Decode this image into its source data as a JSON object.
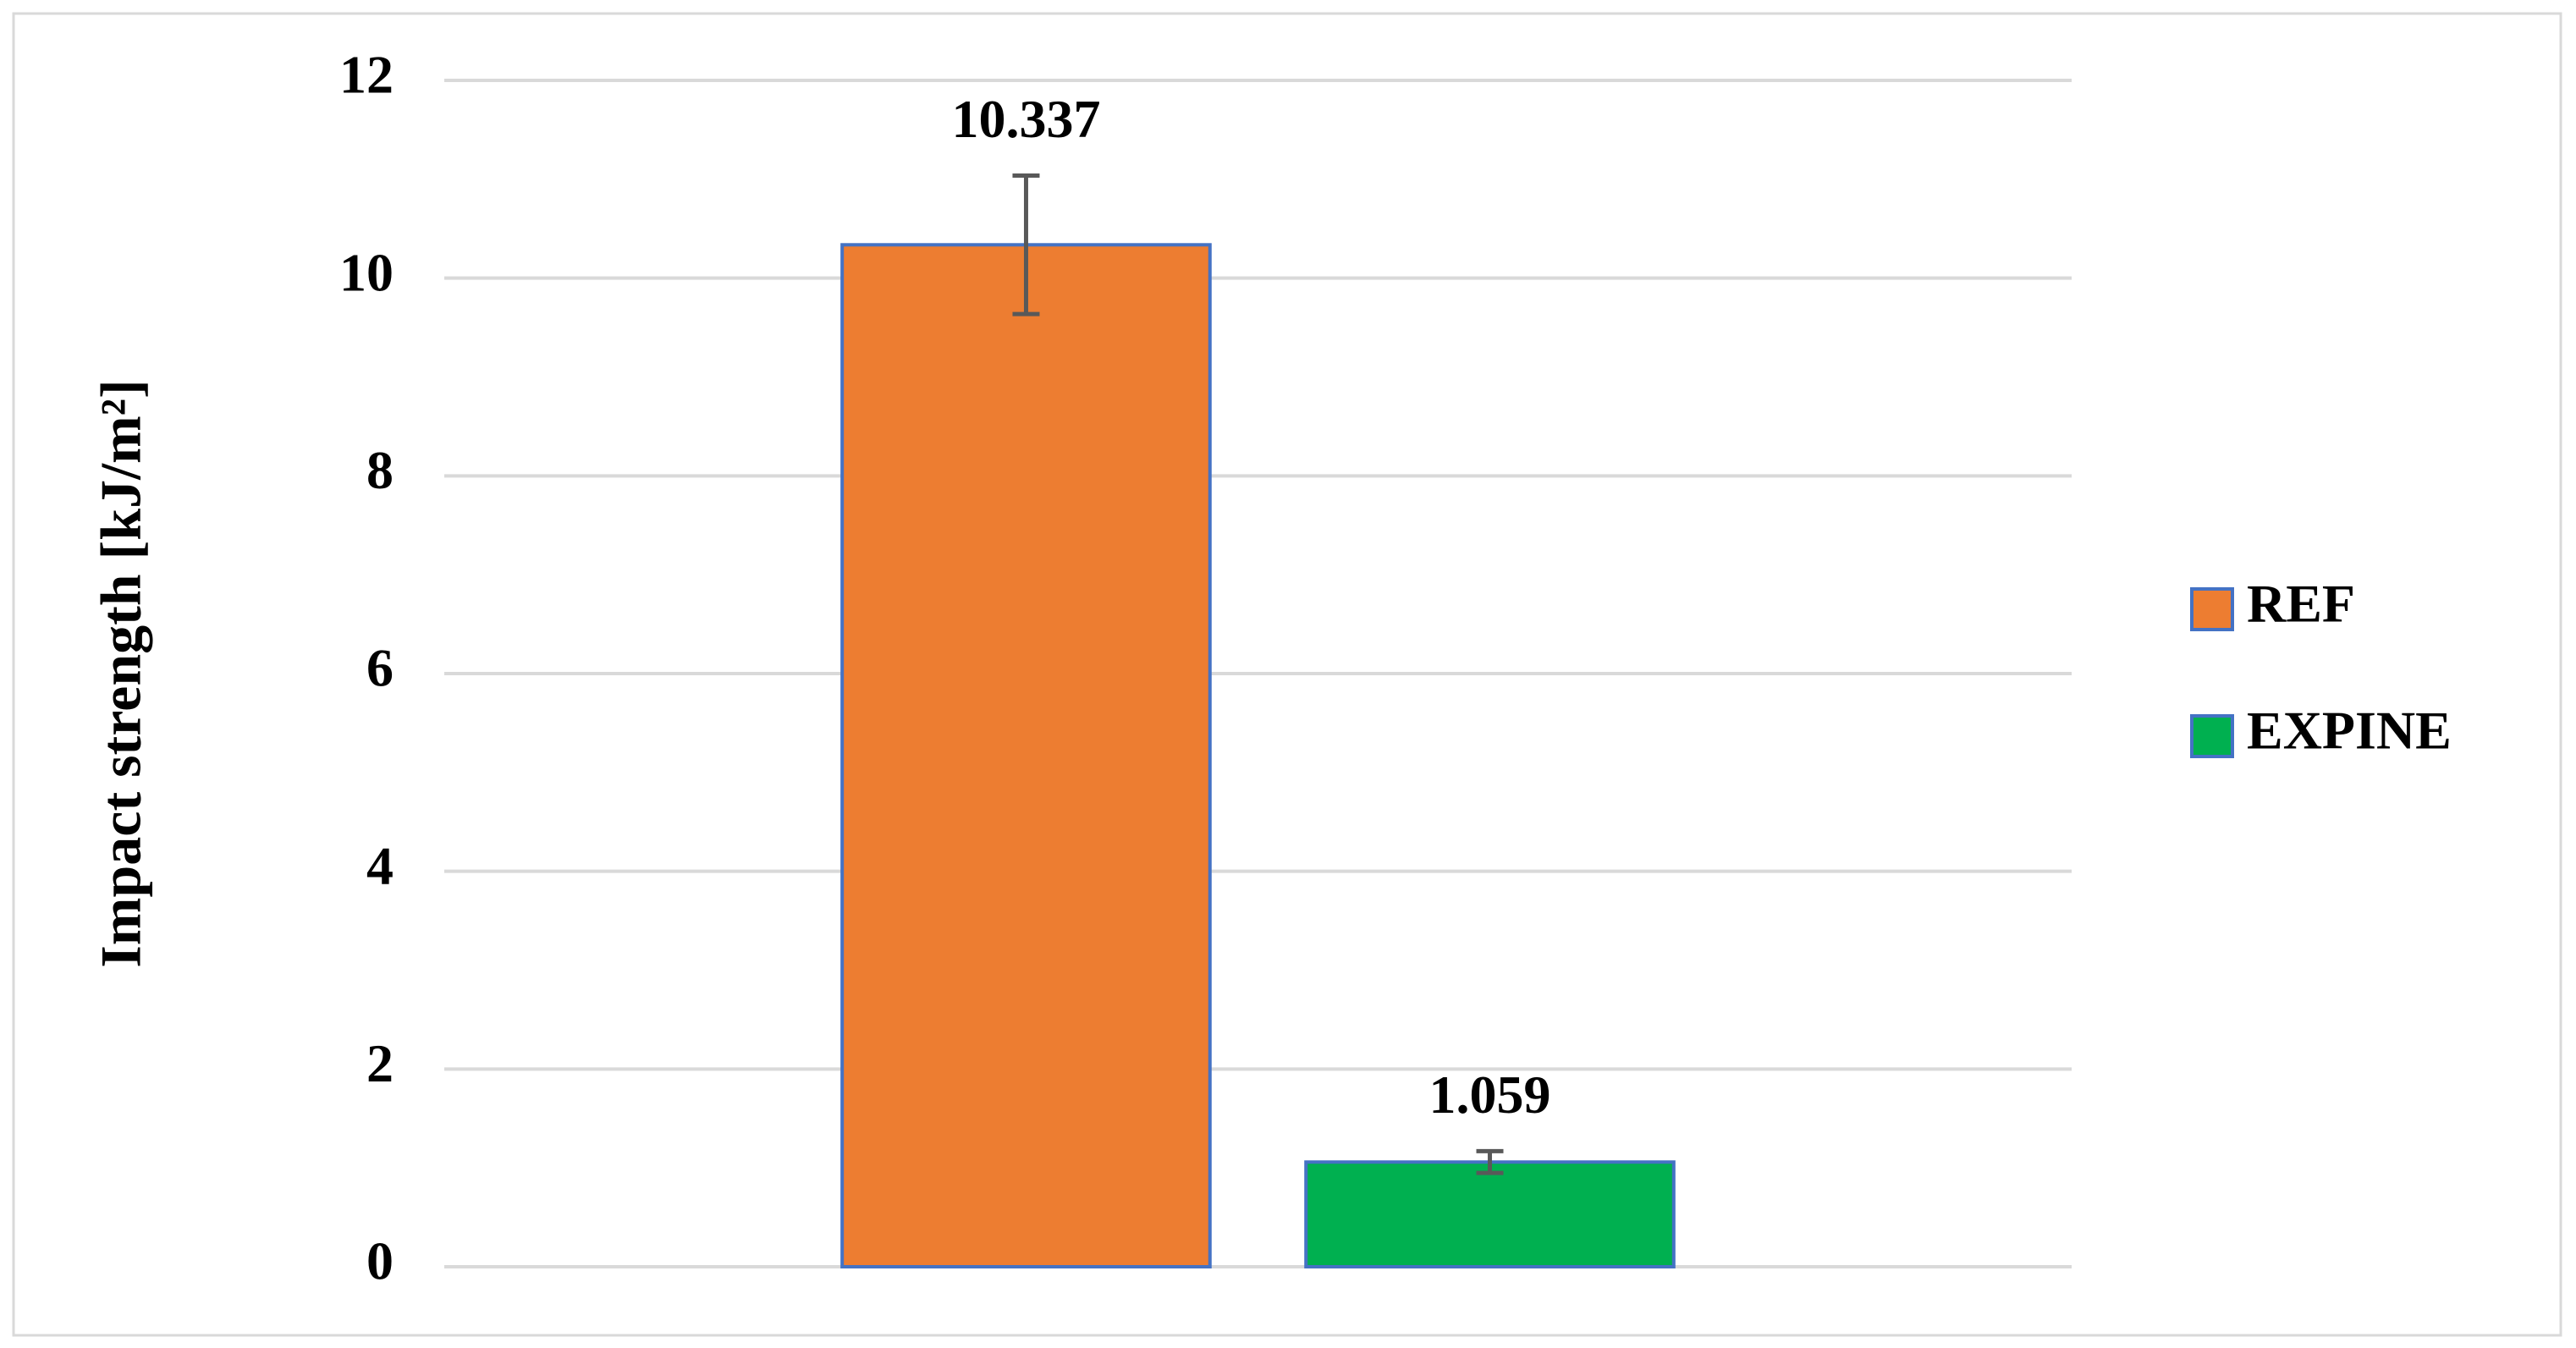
{
  "chart_data": {
    "type": "bar",
    "y_label": "Impact strength [kJ/m²]",
    "series": [
      {
        "name": "REF",
        "color": "#ed7d31",
        "values": [
          10.337
        ],
        "errors": [
          0.7
        ]
      },
      {
        "name": "EXPINE",
        "color": "#00b050",
        "values": [
          1.059
        ],
        "errors": [
          0.11
        ]
      }
    ],
    "ylim": [
      0,
      12
    ],
    "yticks": [
      0,
      2,
      4,
      6,
      8,
      10,
      12
    ],
    "grid": true,
    "legend": "right"
  }
}
